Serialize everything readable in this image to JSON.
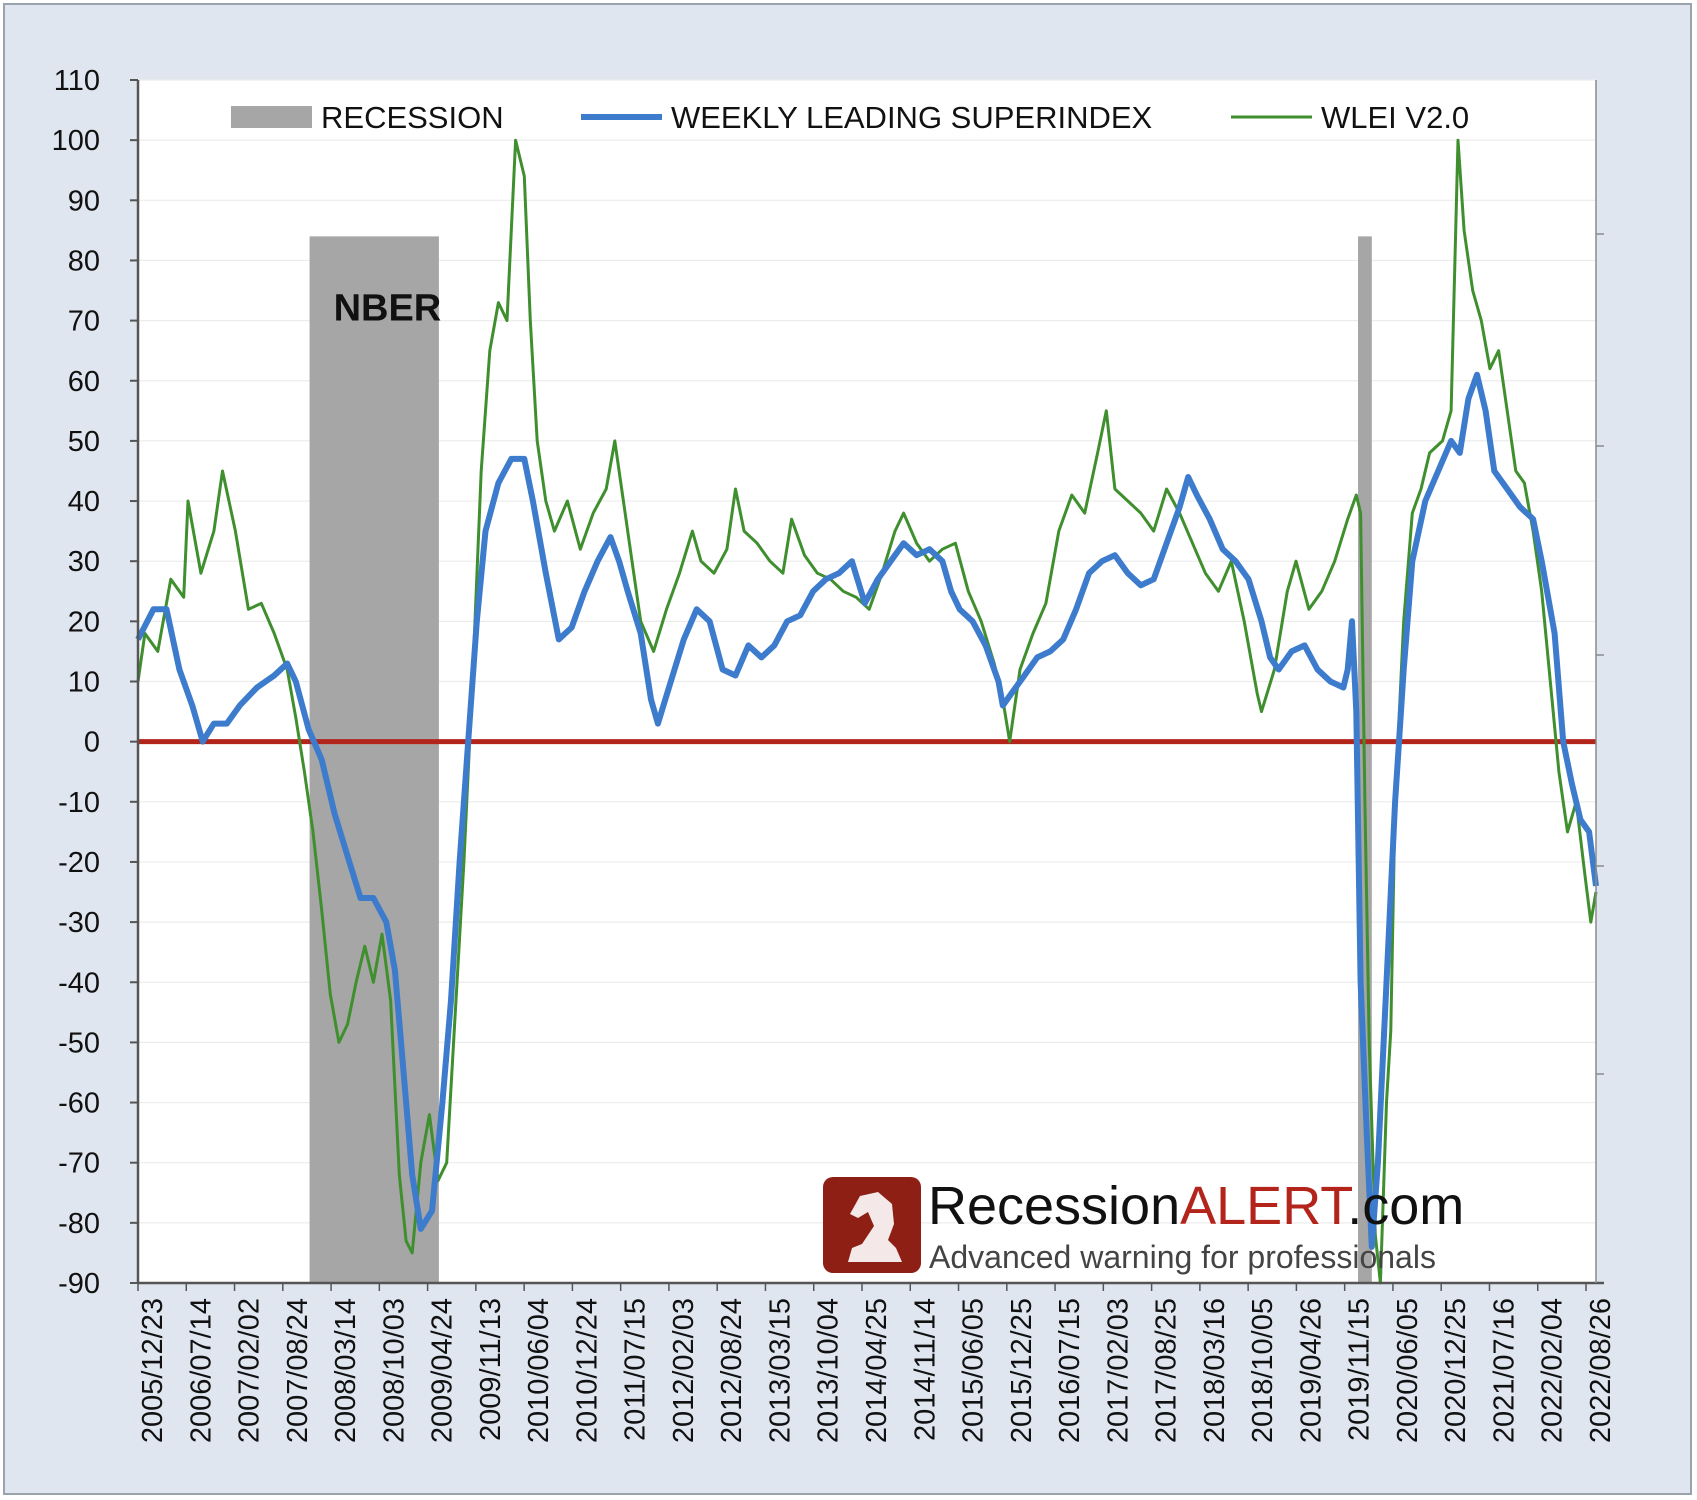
{
  "chart_data": {
    "type": "line",
    "title": "",
    "xlabel": "",
    "ylabel": "",
    "ylim": [
      -90,
      110
    ],
    "yticks": [
      "110",
      "100",
      "90",
      "80",
      "70",
      "60",
      "50",
      "40",
      "30",
      "20",
      "10",
      "0",
      "-10",
      "-20",
      "-30",
      "-40",
      "-50",
      "-60",
      "-70",
      "-80",
      "-90"
    ],
    "x_tick_labels": [
      "2005/12/23",
      "2006/07/14",
      "2007/02/02",
      "2007/08/24",
      "2008/03/14",
      "2008/10/03",
      "2009/04/24",
      "2009/11/13",
      "2010/06/04",
      "2010/12/24",
      "2011/07/15",
      "2012/02/03",
      "2012/08/24",
      "2013/03/15",
      "2013/10/04",
      "2014/04/25",
      "2014/11/14",
      "2015/06/05",
      "2015/12/25",
      "2016/07/15",
      "2017/02/03",
      "2017/08/25",
      "2018/03/16",
      "2018/10/05",
      "2019/04/26",
      "2019/11/15",
      "2020/06/05",
      "2020/12/25",
      "2021/07/16",
      "2022/02/04",
      "2022/08/26"
    ],
    "x_range": [
      2005.97,
      2022.88
    ],
    "grid": true,
    "legend_position": "top",
    "zero_line": 0,
    "recessions": [
      {
        "start": 2007.96,
        "end": 2009.46,
        "label": "NBER"
      },
      {
        "start": 2020.12,
        "end": 2020.28,
        "label": ""
      }
    ],
    "series": [
      {
        "name": "WEEKLY LEADING SUPERINDEX",
        "color": "#3d7ccc",
        "points": [
          [
            2005.97,
            17
          ],
          [
            2006.15,
            22
          ],
          [
            2006.3,
            22
          ],
          [
            2006.45,
            12
          ],
          [
            2006.6,
            6
          ],
          [
            2006.72,
            0
          ],
          [
            2006.85,
            3
          ],
          [
            2007.0,
            3
          ],
          [
            2007.15,
            6
          ],
          [
            2007.35,
            9
          ],
          [
            2007.55,
            11
          ],
          [
            2007.7,
            13
          ],
          [
            2007.8,
            10
          ],
          [
            2007.95,
            2
          ],
          [
            2008.1,
            -3
          ],
          [
            2008.25,
            -12
          ],
          [
            2008.4,
            -19
          ],
          [
            2008.55,
            -26
          ],
          [
            2008.7,
            -26
          ],
          [
            2008.85,
            -30
          ],
          [
            2008.95,
            -38
          ],
          [
            2009.05,
            -55
          ],
          [
            2009.15,
            -72
          ],
          [
            2009.25,
            -81
          ],
          [
            2009.38,
            -78
          ],
          [
            2009.5,
            -60
          ],
          [
            2009.6,
            -43
          ],
          [
            2009.7,
            -20
          ],
          [
            2009.8,
            0
          ],
          [
            2009.9,
            20
          ],
          [
            2010.0,
            35
          ],
          [
            2010.15,
            43
          ],
          [
            2010.3,
            47
          ],
          [
            2010.45,
            47
          ],
          [
            2010.55,
            40
          ],
          [
            2010.7,
            28
          ],
          [
            2010.85,
            17
          ],
          [
            2011.0,
            19
          ],
          [
            2011.15,
            25
          ],
          [
            2011.3,
            30
          ],
          [
            2011.45,
            34
          ],
          [
            2011.55,
            30
          ],
          [
            2011.65,
            25
          ],
          [
            2011.8,
            18
          ],
          [
            2011.92,
            7
          ],
          [
            2012.0,
            3
          ],
          [
            2012.15,
            10
          ],
          [
            2012.3,
            17
          ],
          [
            2012.45,
            22
          ],
          [
            2012.6,
            20
          ],
          [
            2012.75,
            12
          ],
          [
            2012.9,
            11
          ],
          [
            2013.05,
            16
          ],
          [
            2013.2,
            14
          ],
          [
            2013.35,
            16
          ],
          [
            2013.5,
            20
          ],
          [
            2013.65,
            21
          ],
          [
            2013.8,
            25
          ],
          [
            2013.95,
            27
          ],
          [
            2014.1,
            28
          ],
          [
            2014.25,
            30
          ],
          [
            2014.4,
            23
          ],
          [
            2014.55,
            27
          ],
          [
            2014.7,
            30
          ],
          [
            2014.85,
            33
          ],
          [
            2015.0,
            31
          ],
          [
            2015.15,
            32
          ],
          [
            2015.3,
            30
          ],
          [
            2015.4,
            25
          ],
          [
            2015.5,
            22
          ],
          [
            2015.65,
            20
          ],
          [
            2015.8,
            16
          ],
          [
            2015.95,
            10
          ],
          [
            2016.0,
            6
          ],
          [
            2016.1,
            8
          ],
          [
            2016.25,
            11
          ],
          [
            2016.4,
            14
          ],
          [
            2016.55,
            15
          ],
          [
            2016.7,
            17
          ],
          [
            2016.85,
            22
          ],
          [
            2017.0,
            28
          ],
          [
            2017.15,
            30
          ],
          [
            2017.3,
            31
          ],
          [
            2017.45,
            28
          ],
          [
            2017.6,
            26
          ],
          [
            2017.75,
            27
          ],
          [
            2017.9,
            33
          ],
          [
            2018.05,
            39
          ],
          [
            2018.15,
            44
          ],
          [
            2018.25,
            41
          ],
          [
            2018.4,
            37
          ],
          [
            2018.55,
            32
          ],
          [
            2018.7,
            30
          ],
          [
            2018.85,
            27
          ],
          [
            2019.0,
            20
          ],
          [
            2019.1,
            14
          ],
          [
            2019.2,
            12
          ],
          [
            2019.35,
            15
          ],
          [
            2019.5,
            16
          ],
          [
            2019.65,
            12
          ],
          [
            2019.8,
            10
          ],
          [
            2019.95,
            9
          ],
          [
            2020.0,
            12
          ],
          [
            2020.05,
            20
          ],
          [
            2020.1,
            5
          ],
          [
            2020.15,
            -40
          ],
          [
            2020.22,
            -65
          ],
          [
            2020.28,
            -84
          ],
          [
            2020.35,
            -70
          ],
          [
            2020.45,
            -40
          ],
          [
            2020.55,
            -10
          ],
          [
            2020.65,
            12
          ],
          [
            2020.75,
            30
          ],
          [
            2020.9,
            40
          ],
          [
            2021.05,
            45
          ],
          [
            2021.2,
            50
          ],
          [
            2021.3,
            48
          ],
          [
            2021.4,
            57
          ],
          [
            2021.5,
            61
          ],
          [
            2021.6,
            55
          ],
          [
            2021.7,
            45
          ],
          [
            2021.85,
            42
          ],
          [
            2022.0,
            39
          ],
          [
            2022.15,
            37
          ],
          [
            2022.25,
            30
          ],
          [
            2022.4,
            18
          ],
          [
            2022.5,
            0
          ],
          [
            2022.6,
            -7
          ],
          [
            2022.7,
            -13
          ],
          [
            2022.8,
            -15
          ],
          [
            2022.88,
            -24
          ]
        ]
      },
      {
        "name": "WLEI V2.0",
        "color": "#3f8f2e",
        "points": [
          [
            2005.97,
            10
          ],
          [
            2006.05,
            18
          ],
          [
            2006.2,
            15
          ],
          [
            2006.35,
            27
          ],
          [
            2006.5,
            24
          ],
          [
            2006.55,
            40
          ],
          [
            2006.7,
            28
          ],
          [
            2006.85,
            35
          ],
          [
            2006.95,
            45
          ],
          [
            2007.1,
            35
          ],
          [
            2007.25,
            22
          ],
          [
            2007.4,
            23
          ],
          [
            2007.55,
            18
          ],
          [
            2007.7,
            12
          ],
          [
            2007.8,
            4
          ],
          [
            2007.9,
            -5
          ],
          [
            2008.0,
            -15
          ],
          [
            2008.1,
            -28
          ],
          [
            2008.2,
            -42
          ],
          [
            2008.3,
            -50
          ],
          [
            2008.4,
            -47
          ],
          [
            2008.5,
            -40
          ],
          [
            2008.6,
            -34
          ],
          [
            2008.7,
            -40
          ],
          [
            2008.8,
            -32
          ],
          [
            2008.9,
            -43
          ],
          [
            2009.0,
            -72
          ],
          [
            2009.08,
            -83
          ],
          [
            2009.15,
            -85
          ],
          [
            2009.25,
            -70
          ],
          [
            2009.35,
            -62
          ],
          [
            2009.45,
            -73
          ],
          [
            2009.55,
            -70
          ],
          [
            2009.65,
            -45
          ],
          [
            2009.75,
            -20
          ],
          [
            2009.85,
            10
          ],
          [
            2009.95,
            45
          ],
          [
            2010.05,
            65
          ],
          [
            2010.15,
            73
          ],
          [
            2010.25,
            70
          ],
          [
            2010.35,
            100
          ],
          [
            2010.45,
            94
          ],
          [
            2010.52,
            70
          ],
          [
            2010.6,
            50
          ],
          [
            2010.7,
            40
          ],
          [
            2010.8,
            35
          ],
          [
            2010.95,
            40
          ],
          [
            2011.1,
            32
          ],
          [
            2011.25,
            38
          ],
          [
            2011.4,
            42
          ],
          [
            2011.5,
            50
          ],
          [
            2011.6,
            40
          ],
          [
            2011.7,
            30
          ],
          [
            2011.8,
            20
          ],
          [
            2011.95,
            15
          ],
          [
            2012.1,
            22
          ],
          [
            2012.25,
            28
          ],
          [
            2012.4,
            35
          ],
          [
            2012.5,
            30
          ],
          [
            2012.65,
            28
          ],
          [
            2012.8,
            32
          ],
          [
            2012.9,
            42
          ],
          [
            2013.0,
            35
          ],
          [
            2013.15,
            33
          ],
          [
            2013.3,
            30
          ],
          [
            2013.45,
            28
          ],
          [
            2013.55,
            37
          ],
          [
            2013.7,
            31
          ],
          [
            2013.85,
            28
          ],
          [
            2014.0,
            27
          ],
          [
            2014.15,
            25
          ],
          [
            2014.3,
            24
          ],
          [
            2014.45,
            22
          ],
          [
            2014.6,
            28
          ],
          [
            2014.75,
            35
          ],
          [
            2014.85,
            38
          ],
          [
            2015.0,
            33
          ],
          [
            2015.15,
            30
          ],
          [
            2015.3,
            32
          ],
          [
            2015.45,
            33
          ],
          [
            2015.6,
            25
          ],
          [
            2015.75,
            20
          ],
          [
            2015.9,
            13
          ],
          [
            2016.0,
            7
          ],
          [
            2016.08,
            0
          ],
          [
            2016.2,
            12
          ],
          [
            2016.35,
            18
          ],
          [
            2016.5,
            23
          ],
          [
            2016.65,
            35
          ],
          [
            2016.8,
            41
          ],
          [
            2016.95,
            38
          ],
          [
            2017.1,
            48
          ],
          [
            2017.2,
            55
          ],
          [
            2017.3,
            42
          ],
          [
            2017.45,
            40
          ],
          [
            2017.6,
            38
          ],
          [
            2017.75,
            35
          ],
          [
            2017.9,
            42
          ],
          [
            2018.05,
            38
          ],
          [
            2018.2,
            33
          ],
          [
            2018.35,
            28
          ],
          [
            2018.5,
            25
          ],
          [
            2018.65,
            30
          ],
          [
            2018.8,
            20
          ],
          [
            2018.95,
            8
          ],
          [
            2019.0,
            5
          ],
          [
            2019.15,
            12
          ],
          [
            2019.3,
            25
          ],
          [
            2019.4,
            30
          ],
          [
            2019.55,
            22
          ],
          [
            2019.7,
            25
          ],
          [
            2019.85,
            30
          ],
          [
            2020.0,
            37
          ],
          [
            2020.1,
            41
          ],
          [
            2020.15,
            38
          ],
          [
            2020.2,
            -10
          ],
          [
            2020.25,
            -50
          ],
          [
            2020.32,
            -82
          ],
          [
            2020.38,
            -90
          ],
          [
            2020.45,
            -60
          ],
          [
            2020.5,
            -48
          ],
          [
            2020.55,
            -10
          ],
          [
            2020.65,
            20
          ],
          [
            2020.75,
            38
          ],
          [
            2020.85,
            42
          ],
          [
            2020.95,
            48
          ],
          [
            2021.1,
            50
          ],
          [
            2021.2,
            55
          ],
          [
            2021.28,
            100
          ],
          [
            2021.35,
            85
          ],
          [
            2021.45,
            75
          ],
          [
            2021.55,
            70
          ],
          [
            2021.65,
            62
          ],
          [
            2021.75,
            65
          ],
          [
            2021.85,
            55
          ],
          [
            2021.95,
            45
          ],
          [
            2022.05,
            43
          ],
          [
            2022.15,
            35
          ],
          [
            2022.25,
            25
          ],
          [
            2022.35,
            10
          ],
          [
            2022.45,
            -5
          ],
          [
            2022.55,
            -15
          ],
          [
            2022.65,
            -10
          ],
          [
            2022.75,
            -22
          ],
          [
            2022.82,
            -30
          ],
          [
            2022.88,
            -25
          ]
        ]
      }
    ],
    "legend": [
      {
        "label": "RECESSION",
        "swatch": "box",
        "color": "#a6a6a6"
      },
      {
        "label": "WEEKLY LEADING SUPERINDEX",
        "swatch": "line",
        "color": "#3d7ccc"
      },
      {
        "label": "WLEI V2.0",
        "swatch": "line",
        "color": "#3f8f2e"
      }
    ],
    "annotations": [
      "NBER"
    ]
  },
  "brand": {
    "name_part1": "Recession",
    "name_part2": "ALERT",
    "name_part3": ".com",
    "tagline": "Advanced warning for professionals",
    "logo_color": "#8e1f14"
  }
}
